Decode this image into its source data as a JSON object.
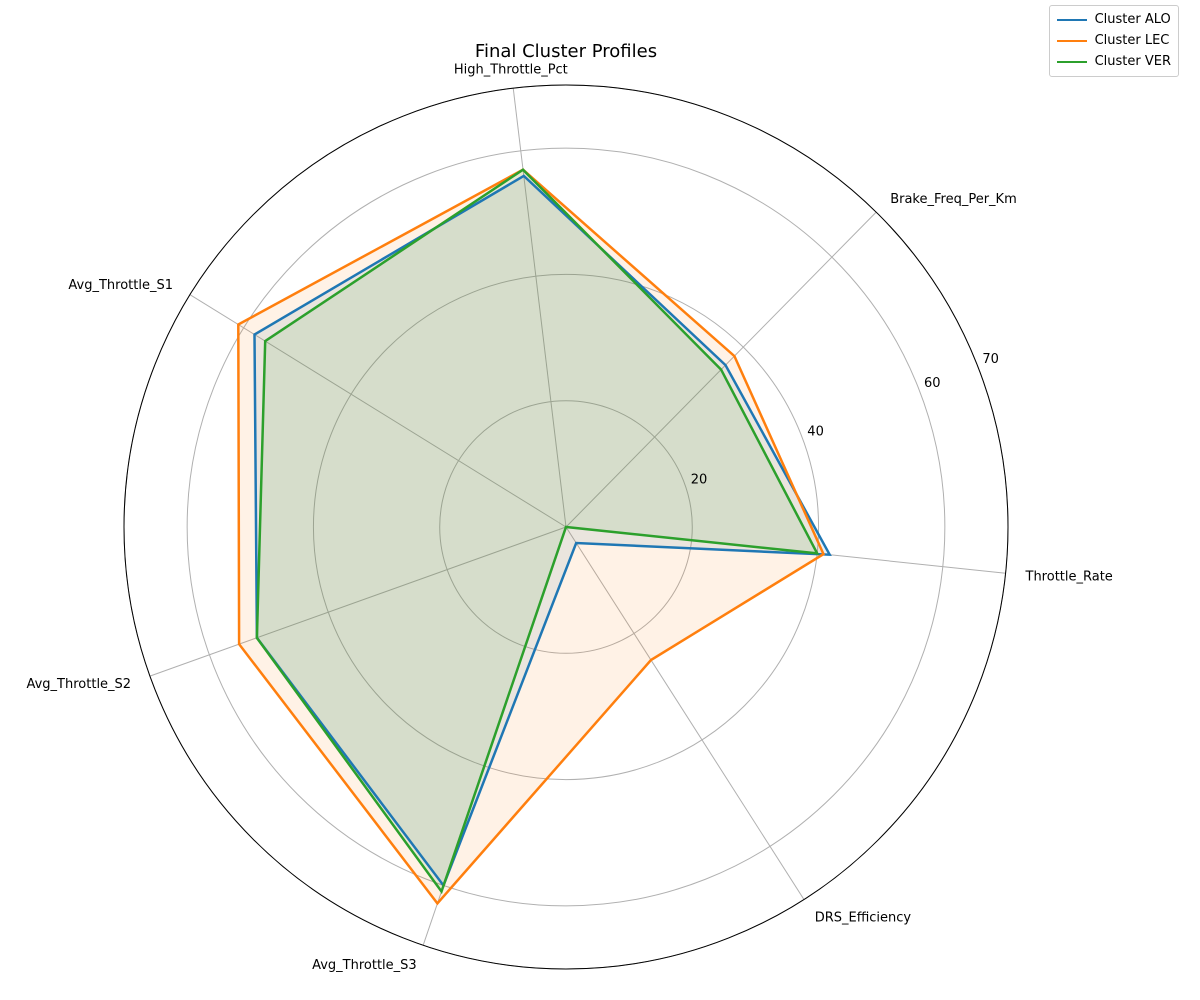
{
  "chart_data": {
    "type": "radar",
    "title": "Final Cluster Profiles",
    "axes": [
      "Throttle_Rate",
      "Brake_Freq_Per_Km",
      "High_Throttle_Pct",
      "Avg_Throttle_S1",
      "Avg_Throttle_S2",
      "Avg_Throttle_S3",
      "DRS_Efficiency"
    ],
    "radial_ticks": [
      20,
      40,
      60,
      70
    ],
    "rlim": [
      0,
      70
    ],
    "grid": true,
    "legend_position": "top-right",
    "series": [
      {
        "name": "Cluster ALO",
        "color": "#1f77b4",
        "values": [
          42,
          36,
          56,
          58,
          52,
          60,
          3
        ]
      },
      {
        "name": "Cluster LEC",
        "color": "#ff7f0e",
        "values": [
          41,
          38,
          57,
          61,
          55,
          63,
          25
        ]
      },
      {
        "name": "Cluster VER",
        "color": "#2ca02c",
        "values": [
          40,
          35,
          57,
          56,
          52,
          61,
          0
        ]
      }
    ]
  }
}
